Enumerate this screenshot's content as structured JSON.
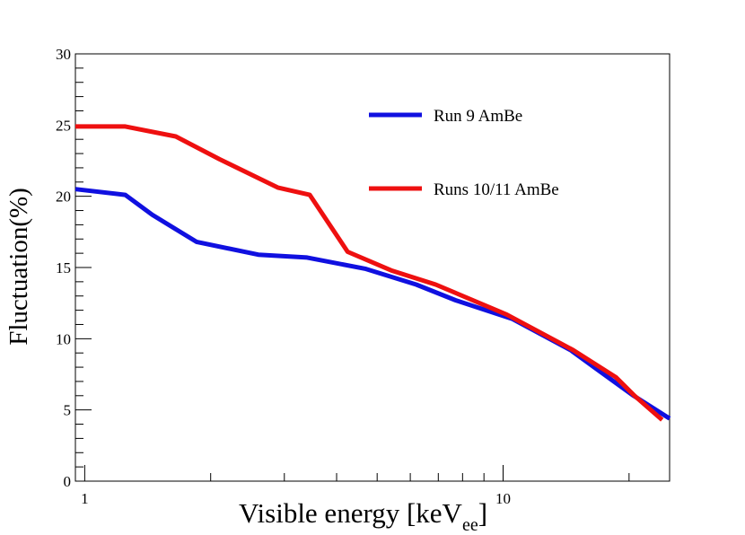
{
  "chart_data": {
    "type": "line",
    "title": "",
    "xlabel": "Visible energy [keV",
    "xlabel_subscript": "ee",
    "xlabel_suffix": "]",
    "ylabel": "Fluctuation(%)",
    "xscale": "log",
    "xlim": [
      0.95,
      25
    ],
    "ylim": [
      0,
      30
    ],
    "x_tick_labels": [
      "1",
      "10"
    ],
    "y_tick_labels": [
      "0",
      "5",
      "10",
      "15",
      "20",
      "25",
      "30"
    ],
    "legend_position": "top-right",
    "grid": false,
    "series": [
      {
        "name": "Run 9 AmBe",
        "color": "#1010e0",
        "x": [
          0.95,
          1.25,
          1.45,
          1.85,
          2.6,
          3.4,
          4.7,
          6.2,
          7.7,
          10.5,
          14.5,
          16.5,
          20.5,
          25
        ],
        "y": [
          20.5,
          20.1,
          18.7,
          16.8,
          15.9,
          15.7,
          14.9,
          13.8,
          12.7,
          11.4,
          9.2,
          8.0,
          6.0,
          4.4
        ]
      },
      {
        "name": "Runs 10/11 AmBe",
        "color": "#ee1010",
        "x": [
          0.95,
          1.25,
          1.65,
          2.1,
          2.9,
          3.45,
          4.25,
          5.4,
          6.9,
          10.2,
          14.7,
          18.6,
          20.6,
          24
        ],
        "y": [
          24.9,
          24.9,
          24.2,
          22.6,
          20.6,
          20.1,
          16.1,
          14.8,
          13.8,
          11.7,
          9.2,
          7.3,
          6.0,
          4.3
        ]
      }
    ]
  }
}
